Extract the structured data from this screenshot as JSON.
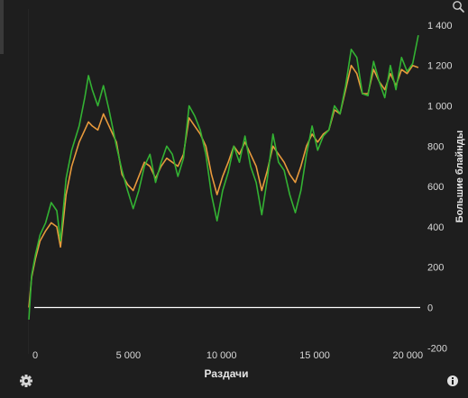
{
  "chart_data": {
    "type": "line",
    "xlabel": "Раздачи",
    "ylabel": "Большие блайнды",
    "xlim": [
      0,
      21000
    ],
    "ylim": [
      -230,
      1480
    ],
    "x_ticks": [
      0,
      5000,
      10000,
      15000,
      20000
    ],
    "x_tick_labels": [
      "0",
      "5 000",
      "10 000",
      "15 000",
      "20 000"
    ],
    "y_ticks": [
      -200,
      0,
      200,
      400,
      600,
      800,
      1000,
      1200,
      1400
    ],
    "y_tick_labels": [
      "-200",
      "0",
      "200",
      "400",
      "600",
      "800",
      "1 000",
      "1 200",
      "1 400"
    ],
    "grid": true,
    "zero_line": 0,
    "series": [
      {
        "color": "#33b233",
        "x": [
          0,
          150,
          350,
          600,
          900,
          1200,
          1500,
          1700,
          2000,
          2300,
          2700,
          3000,
          3200,
          3400,
          3700,
          4000,
          4300,
          4700,
          5000,
          5300,
          5600,
          5900,
          6200,
          6500,
          6800,
          7100,
          7400,
          7700,
          8000,
          8300,
          8600,
          8900,
          9200,
          9500,
          9800,
          10100,
          10400,
          10700,
          11000,
          11300,
          11600,
          11900,
          12200,
          12500,
          12800,
          13100,
          13400,
          13700,
          14000,
          14300,
          14600,
          14900,
          15200,
          15500,
          15800,
          16100,
          16400,
          16700,
          17000,
          17300,
          17600,
          17900,
          18200,
          18500,
          18800,
          19100,
          19400,
          19700,
          20000,
          20300,
          20600,
          20900
        ],
        "values": [
          -60,
          160,
          260,
          360,
          420,
          520,
          480,
          330,
          640,
          780,
          900,
          1040,
          1150,
          1080,
          1000,
          1100,
          980,
          800,
          680,
          580,
          490,
          580,
          700,
          760,
          620,
          720,
          800,
          760,
          650,
          740,
          1000,
          950,
          880,
          760,
          560,
          430,
          580,
          670,
          800,
          720,
          850,
          700,
          620,
          460,
          640,
          860,
          720,
          680,
          560,
          470,
          580,
          760,
          900,
          780,
          850,
          880,
          1000,
          960,
          1100,
          1280,
          1240,
          1060,
          1050,
          1220,
          1120,
          1040,
          1200,
          1080,
          1240,
          1170,
          1210,
          1350
        ]
      },
      {
        "color": "#e89a3c",
        "x": [
          0,
          150,
          350,
          600,
          900,
          1200,
          1500,
          1700,
          2000,
          2300,
          2700,
          3000,
          3200,
          3400,
          3700,
          4000,
          4300,
          4700,
          5000,
          5300,
          5600,
          5900,
          6200,
          6500,
          6800,
          7100,
          7400,
          7700,
          8000,
          8300,
          8600,
          8900,
          9200,
          9500,
          9800,
          10100,
          10400,
          10700,
          11000,
          11300,
          11600,
          11900,
          12200,
          12500,
          12800,
          13100,
          13400,
          13700,
          14000,
          14300,
          14600,
          14900,
          15200,
          15500,
          15800,
          16100,
          16400,
          16700,
          17000,
          17300,
          17600,
          17900,
          18200,
          18500,
          18800,
          19100,
          19400,
          19700,
          20000,
          20300,
          20600,
          20900
        ],
        "values": [
          0,
          150,
          240,
          330,
          380,
          420,
          400,
          300,
          560,
          700,
          820,
          880,
          920,
          900,
          880,
          960,
          900,
          820,
          660,
          610,
          580,
          650,
          720,
          700,
          640,
          700,
          740,
          720,
          700,
          760,
          940,
          900,
          860,
          800,
          660,
          560,
          650,
          720,
          800,
          760,
          820,
          760,
          700,
          580,
          680,
          800,
          760,
          720,
          660,
          620,
          700,
          800,
          860,
          820,
          860,
          880,
          980,
          960,
          1080,
          1200,
          1160,
          1060,
          1060,
          1180,
          1120,
          1080,
          1160,
          1100,
          1180,
          1160,
          1200,
          1190
        ]
      }
    ]
  },
  "icons": {
    "top_right": "zoom-icon",
    "bottom_left": "gear-icon",
    "bottom_right": "info-icon"
  }
}
